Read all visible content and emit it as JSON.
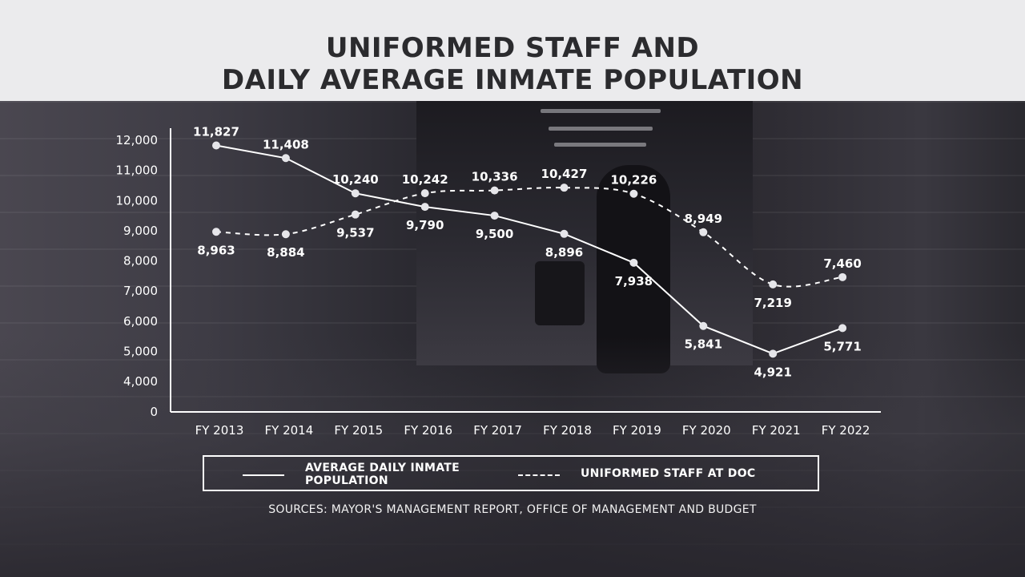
{
  "title": {
    "line1": "UNIFORMED STAFF AND",
    "line2": "DAILY AVERAGE INMATE POPULATION"
  },
  "chart_data": {
    "type": "line",
    "categories": [
      "FY 2013",
      "FY 2014",
      "FY 2015",
      "FY 2016",
      "FY 2017",
      "FY 2018",
      "FY 2019",
      "FY 2020",
      "FY 2021",
      "FY 2022"
    ],
    "y_ticks": [
      0,
      4000,
      5000,
      6000,
      7000,
      8000,
      9000,
      10000,
      11000,
      12000
    ],
    "y_tick_labels": [
      "0",
      "4,000",
      "5,000",
      "6,000",
      "7,000",
      "8,000",
      "9,000",
      "10,000",
      "11,000",
      "12,000"
    ],
    "ylim": [
      0,
      12000
    ],
    "grid": false,
    "series": [
      {
        "name": "AVERAGE DAILY INMATE POPULATION",
        "style": "solid",
        "values": [
          11827,
          11408,
          10240,
          9790,
          9500,
          8896,
          7938,
          5841,
          4921,
          5771
        ],
        "labels": [
          "11,827",
          "11,408",
          "10,240",
          "9,790",
          "9,500",
          "8,896",
          "7,938",
          "5,841",
          "4,921",
          "5,771"
        ]
      },
      {
        "name": "UNIFORMED STAFF AT DOC",
        "style": "dashed",
        "values": [
          8963,
          8884,
          9537,
          10242,
          10336,
          10427,
          10226,
          8949,
          7219,
          7460
        ],
        "labels": [
          "8,963",
          "8,884",
          "9,537",
          "10,242",
          "10,336",
          "10,427",
          "10,226",
          "8,949",
          "7,219",
          "7,460"
        ]
      }
    ],
    "legend_position": "bottom",
    "colors": {
      "line": "#ffffff",
      "header_bg": "#ebebed",
      "title_text": "#2b2b2e"
    }
  },
  "legend": {
    "solid_label": "AVERAGE DAILY INMATE POPULATION",
    "dashed_label": "UNIFORMED STAFF AT DOC"
  },
  "sources": "SOURCES: MAYOR'S MANAGEMENT REPORT, OFFICE OF MANAGEMENT AND BUDGET"
}
